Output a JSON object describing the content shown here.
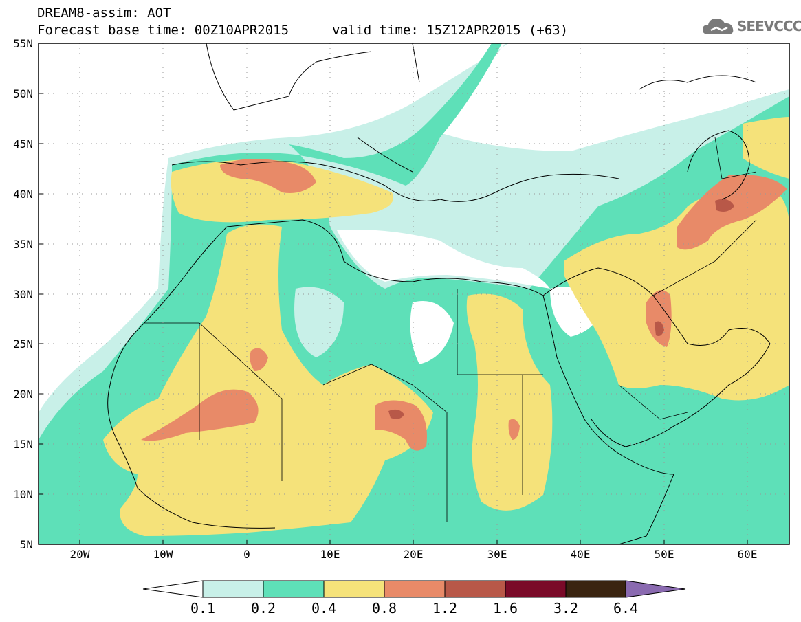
{
  "header": {
    "line1": "DREAM8-assim: AOT",
    "line2_left": "Forecast base time: 00Z10APR2015",
    "line2_right": "valid time: 15Z12APR2015 (+63)"
  },
  "logo": {
    "text": "SEEVCCC",
    "icon": "cloud-logo-icon"
  },
  "map": {
    "lon_range": [
      -25,
      65
    ],
    "lat_range": [
      5,
      55
    ],
    "lat_ticks": [
      "55N",
      "50N",
      "45N",
      "40N",
      "35N",
      "30N",
      "25N",
      "20N",
      "15N",
      "10N",
      "5N"
    ],
    "lon_ticks": [
      "20W",
      "10W",
      "0",
      "10E",
      "20E",
      "30E",
      "40E",
      "50E",
      "60E"
    ]
  },
  "colorbar": {
    "labels": [
      "0.1",
      "0.2",
      "0.4",
      "0.8",
      "1.2",
      "1.6",
      "3.2",
      "6.4"
    ],
    "colors": [
      "#ffffff",
      "#c8f0e8",
      "#5ee0b8",
      "#f5e27a",
      "#e88a68",
      "#b85848",
      "#7a0a28",
      "#3a2410",
      "#8a6ab0"
    ]
  }
}
